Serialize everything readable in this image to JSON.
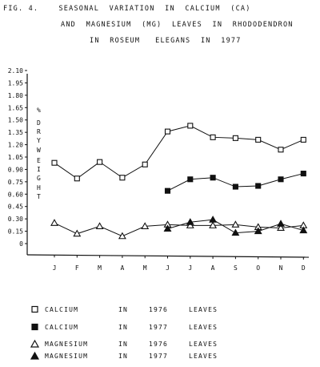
{
  "title_lines": [
    "FIG. 4.    SEASONAL  VARIATION  IN  CALCIUM  (CA)",
    "AND  MAGNESIUM  (MG)  LEAVES  IN  RHODODENDRON",
    "IN  ROSEUM   ELEGANS  IN  1977"
  ],
  "ylabel_unit": "%",
  "ylabel_letters": [
    "D",
    "R",
    "Y",
    "W",
    "E",
    "I",
    "G",
    "H",
    "T"
  ],
  "legend": [
    {
      "marker": "open-square",
      "c1": "CALCIUM",
      "c2": "IN",
      "c3": "1976",
      "c4": "LEAVES"
    },
    {
      "marker": "filled-square",
      "c1": "CALCIUM",
      "c2": "IN",
      "c3": "1977",
      "c4": "LEAVES"
    },
    {
      "marker": "open-triangle",
      "c1": "MAGNESIUM",
      "c2": "IN",
      "c3": "1976",
      "c4": "LEAVES"
    },
    {
      "marker": "filled-triangle",
      "c1": "MAGNESIUM",
      "c2": "IN",
      "c3": "1977",
      "c4": "LEAVES"
    }
  ],
  "chart_data": {
    "type": "line",
    "categories": [
      "J",
      "F",
      "M",
      "A",
      "M",
      "J",
      "J",
      "A",
      "S",
      "O",
      "N",
      "D"
    ],
    "yticks": [
      "0",
      "0.15",
      "0.30",
      "0.45",
      "0.60",
      "0.75",
      "0.90",
      "1.05",
      "1.20",
      "1.35",
      "1.50",
      "1.65",
      "1.80",
      "1.95",
      "2.10"
    ],
    "ylim": [
      0,
      2.1
    ],
    "grid": false,
    "series": [
      {
        "marker": "open-square",
        "values": [
          0.98,
          0.79,
          0.99,
          0.8,
          0.96,
          1.36,
          1.43,
          1.29,
          1.28,
          1.26,
          1.14,
          1.26
        ]
      },
      {
        "marker": "filled-square",
        "values": [
          null,
          null,
          null,
          null,
          null,
          0.64,
          0.78,
          0.8,
          0.69,
          0.7,
          0.78,
          0.85
        ]
      },
      {
        "marker": "open-triangle",
        "values": [
          0.25,
          0.12,
          0.21,
          0.09,
          0.21,
          0.23,
          0.22,
          0.22,
          0.23,
          0.2,
          0.19,
          0.22
        ]
      },
      {
        "marker": "filled-triangle",
        "values": [
          null,
          null,
          null,
          null,
          null,
          0.18,
          0.26,
          0.29,
          0.13,
          0.15,
          0.24,
          0.16
        ]
      }
    ]
  }
}
